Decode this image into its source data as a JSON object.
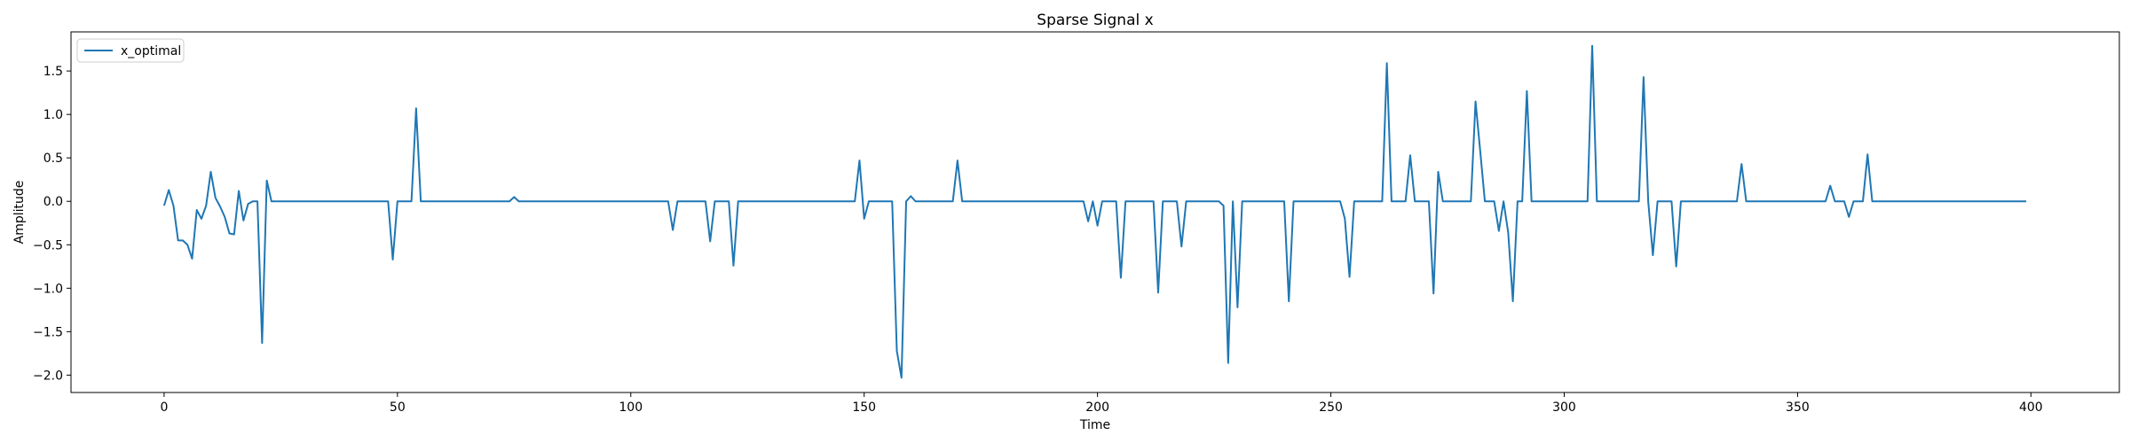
{
  "chart_data": {
    "type": "line",
    "title": "Sparse Signal x",
    "xlabel": "Time",
    "ylabel": "Amplitude",
    "xlim": [
      -19.95,
      418.95
    ],
    "ylim": [
      -2.2,
      1.95
    ],
    "xticks": [
      0,
      50,
      100,
      150,
      200,
      250,
      300,
      350,
      400
    ],
    "yticks": [
      -2.0,
      -1.5,
      -1.0,
      -0.5,
      0.0,
      0.5,
      1.0,
      1.5
    ],
    "grid": false,
    "legend_position": "top-left",
    "series": [
      {
        "name": "x_optimal",
        "color": "#1f77b4",
        "points": [
          [
            0,
            -0.05
          ],
          [
            1,
            0.13
          ],
          [
            2,
            -0.05
          ],
          [
            3,
            -0.45
          ],
          [
            4,
            -0.45
          ],
          [
            5,
            -0.5
          ],
          [
            6,
            -0.66
          ],
          [
            7,
            -0.1
          ],
          [
            8,
            -0.2
          ],
          [
            9,
            -0.05
          ],
          [
            10,
            0.34
          ],
          [
            11,
            0.04
          ],
          [
            12,
            -0.06
          ],
          [
            13,
            -0.18
          ],
          [
            14,
            -0.37
          ],
          [
            15,
            -0.38
          ],
          [
            16,
            0.12
          ],
          [
            17,
            -0.22
          ],
          [
            18,
            -0.03
          ],
          [
            19,
            0.0
          ],
          [
            20,
            0.0
          ],
          [
            21,
            -1.63
          ],
          [
            22,
            0.24
          ],
          [
            23,
            0.0
          ],
          [
            48,
            0.0
          ],
          [
            49,
            -0.67
          ],
          [
            50,
            0.0
          ],
          [
            53,
            0.0
          ],
          [
            54,
            1.07
          ],
          [
            55,
            0.0
          ],
          [
            74,
            0.0
          ],
          [
            75,
            0.05
          ],
          [
            76,
            0.0
          ],
          [
            108,
            0.0
          ],
          [
            109,
            -0.33
          ],
          [
            110,
            0.0
          ],
          [
            116,
            0.0
          ],
          [
            117,
            -0.46
          ],
          [
            118,
            0.0
          ],
          [
            121,
            0.0
          ],
          [
            122,
            -0.74
          ],
          [
            123,
            0.0
          ],
          [
            148,
            0.0
          ],
          [
            149,
            0.47
          ],
          [
            150,
            -0.2
          ],
          [
            151,
            0.0
          ],
          [
            156,
            0.0
          ],
          [
            157,
            -1.72
          ],
          [
            158,
            -2.03
          ],
          [
            159,
            0.0
          ],
          [
            160,
            0.06
          ],
          [
            161,
            0.0
          ],
          [
            169,
            0.0
          ],
          [
            170,
            0.47
          ],
          [
            171,
            0.0
          ],
          [
            197,
            0.0
          ],
          [
            198,
            -0.23
          ],
          [
            199,
            0.0
          ],
          [
            200,
            -0.28
          ],
          [
            201,
            0.0
          ],
          [
            204,
            0.0
          ],
          [
            205,
            -0.88
          ],
          [
            206,
            0.0
          ],
          [
            212,
            0.0
          ],
          [
            213,
            -1.05
          ],
          [
            214,
            0.0
          ],
          [
            217,
            0.0
          ],
          [
            218,
            -0.52
          ],
          [
            219,
            0.0
          ],
          [
            226,
            0.0
          ],
          [
            227,
            -0.05
          ],
          [
            228,
            -1.86
          ],
          [
            229,
            0.0
          ],
          [
            230,
            -1.22
          ],
          [
            231,
            0.0
          ],
          [
            240,
            0.0
          ],
          [
            241,
            -1.15
          ],
          [
            242,
            0.0
          ],
          [
            252,
            0.0
          ],
          [
            253,
            -0.2
          ],
          [
            254,
            -0.87
          ],
          [
            255,
            0.0
          ],
          [
            261,
            0.0
          ],
          [
            262,
            1.59
          ],
          [
            263,
            0.0
          ],
          [
            266,
            0.0
          ],
          [
            267,
            0.53
          ],
          [
            268,
            0.0
          ],
          [
            271,
            0.0
          ],
          [
            272,
            -1.06
          ],
          [
            273,
            0.34
          ],
          [
            274,
            0.0
          ],
          [
            280,
            0.0
          ],
          [
            281,
            1.15
          ],
          [
            282,
            0.58
          ],
          [
            283,
            0.0
          ],
          [
            285,
            0.0
          ],
          [
            286,
            -0.34
          ],
          [
            287,
            0.0
          ],
          [
            288,
            -0.36
          ],
          [
            289,
            -1.15
          ],
          [
            290,
            0.0
          ],
          [
            291,
            0.0
          ],
          [
            292,
            1.27
          ],
          [
            293,
            0.0
          ],
          [
            305,
            0.0
          ],
          [
            306,
            1.79
          ],
          [
            307,
            0.0
          ],
          [
            316,
            0.0
          ],
          [
            317,
            1.43
          ],
          [
            318,
            0.0
          ],
          [
            319,
            -0.62
          ],
          [
            320,
            0.0
          ],
          [
            323,
            0.0
          ],
          [
            324,
            -0.75
          ],
          [
            325,
            0.0
          ],
          [
            337,
            0.0
          ],
          [
            338,
            0.43
          ],
          [
            339,
            0.0
          ],
          [
            356,
            0.0
          ],
          [
            357,
            0.18
          ],
          [
            358,
            0.0
          ],
          [
            360,
            0.0
          ],
          [
            361,
            -0.18
          ],
          [
            362,
            0.0
          ],
          [
            364,
            0.0
          ],
          [
            365,
            0.54
          ],
          [
            366,
            0.0
          ],
          [
            399,
            0.0
          ]
        ]
      }
    ]
  }
}
